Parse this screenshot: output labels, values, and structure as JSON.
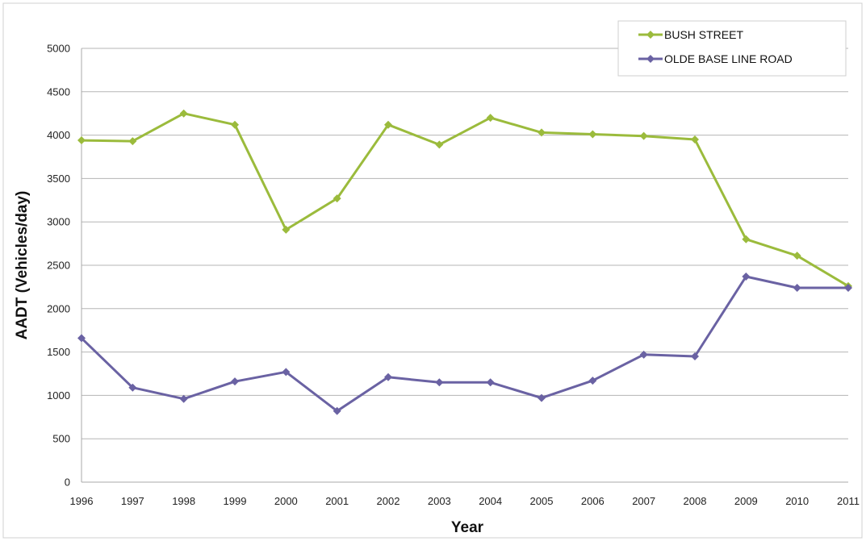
{
  "chart_data": {
    "type": "line",
    "title": "",
    "xlabel": "Year",
    "ylabel": "AADT (Vehicles/day)",
    "x": [
      "1996",
      "1997",
      "1998",
      "1999",
      "2000",
      "2001",
      "2002",
      "2003",
      "2004",
      "2005",
      "2006",
      "2007",
      "2008",
      "2009",
      "2010",
      "2011"
    ],
    "ylim": [
      0,
      5000
    ],
    "yticks": [
      0,
      500,
      1000,
      1500,
      2000,
      2500,
      3000,
      3500,
      4000,
      4500,
      5000
    ],
    "grid": true,
    "legend_position": "top-right",
    "series": [
      {
        "name": "BUSH STREET",
        "color": "#9bbb3c",
        "values": [
          3940,
          3930,
          4250,
          4120,
          2910,
          3270,
          4120,
          3890,
          4200,
          4030,
          4010,
          3990,
          3950,
          2800,
          2610,
          2260
        ]
      },
      {
        "name": "OLDE BASE LINE ROAD",
        "color": "#6a62a3",
        "values": [
          1660,
          1090,
          960,
          1160,
          1270,
          820,
          1210,
          1150,
          1150,
          970,
          1170,
          1470,
          1450,
          2370,
          2240,
          2240
        ]
      }
    ]
  }
}
